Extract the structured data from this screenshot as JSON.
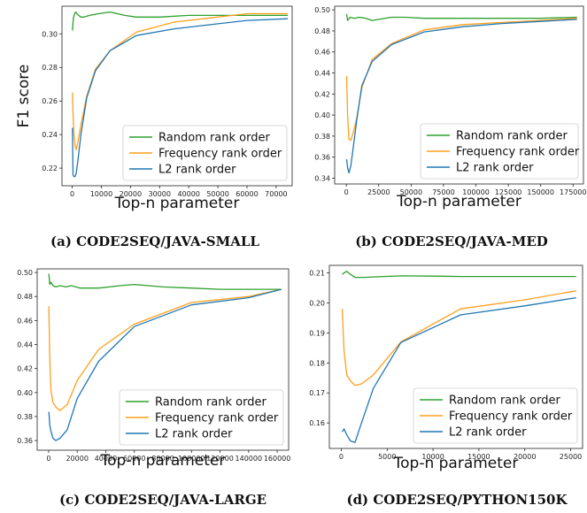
{
  "colors": {
    "random": "#2ca02c",
    "frequency": "#ff9f1c",
    "l2": "#1f77b4"
  },
  "chart_data": [
    {
      "type": "line",
      "caption": "(a) CODE2SEQ/JAVA-SMALL",
      "xlabel": "Top-n parameter",
      "ylabel": "F1 score",
      "xlim": [
        -3500,
        75500
      ],
      "ylim": [
        0.2095,
        0.3165
      ],
      "xticks": [
        0,
        10000,
        20000,
        30000,
        40000,
        50000,
        60000,
        70000
      ],
      "xtick_labels": [
        "0",
        "10000",
        "20000",
        "30000",
        "40000",
        "50000",
        "60000",
        "70000"
      ],
      "yticks": [
        0.22,
        0.24,
        0.26,
        0.28,
        0.3
      ],
      "ytick_labels": [
        "0.22",
        "0.24",
        "0.26",
        "0.28",
        "0.30"
      ],
      "legend": "lower-right",
      "series": [
        {
          "name": "Random rank order",
          "color_key": "random",
          "x": [
            100,
            400,
            800,
            1200,
            1600,
            2200,
            3000,
            4000,
            6000,
            9000,
            13000,
            18000,
            22000,
            30000,
            40000,
            50000,
            60000,
            74000
          ],
          "y": [
            0.302,
            0.309,
            0.312,
            0.313,
            0.312,
            0.311,
            0.31,
            0.31,
            0.311,
            0.312,
            0.313,
            0.311,
            0.31,
            0.31,
            0.311,
            0.311,
            0.311,
            0.311
          ]
        },
        {
          "name": "Frequency rank order",
          "color_key": "frequency",
          "x": [
            100,
            300,
            600,
            1000,
            1400,
            2000,
            3000,
            5000,
            8000,
            13000,
            22000,
            35000,
            50000,
            60000,
            74000
          ],
          "y": [
            0.265,
            0.252,
            0.24,
            0.233,
            0.231,
            0.236,
            0.246,
            0.263,
            0.279,
            0.29,
            0.301,
            0.307,
            0.31,
            0.312,
            0.312
          ]
        },
        {
          "name": "L2 rank order",
          "color_key": "l2",
          "x": [
            100,
            300,
            600,
            1000,
            1400,
            2000,
            3000,
            5000,
            8000,
            13000,
            22000,
            35000,
            50000,
            60000,
            74000
          ],
          "y": [
            0.244,
            0.216,
            0.215,
            0.215,
            0.217,
            0.225,
            0.24,
            0.262,
            0.278,
            0.29,
            0.299,
            0.303,
            0.306,
            0.308,
            0.309
          ]
        }
      ]
    },
    {
      "type": "line",
      "caption": "(b) CODE2SEQ/JAVA-MED",
      "xlabel": "Top-n parameter",
      "ylabel": "",
      "xlim": [
        -9000,
        183000
      ],
      "ylim": [
        0.3345,
        0.5035
      ],
      "xticks": [
        0,
        25000,
        50000,
        75000,
        100000,
        125000,
        150000,
        175000
      ],
      "xtick_labels": [
        "0",
        "25000",
        "50000",
        "75000",
        "100000",
        "125000",
        "150000",
        "175000"
      ],
      "yticks": [
        0.34,
        0.36,
        0.38,
        0.4,
        0.42,
        0.44,
        0.46,
        0.48,
        0.5
      ],
      "ytick_labels": [
        "0.34",
        "0.36",
        "0.38",
        "0.40",
        "0.42",
        "0.44",
        "0.46",
        "0.48",
        "0.50"
      ],
      "legend": "lower-right",
      "series": [
        {
          "name": "Random rank order",
          "color_key": "random",
          "x": [
            200,
            1000,
            3000,
            6000,
            10000,
            15000,
            20000,
            25000,
            35000,
            45000,
            60000,
            80000,
            100000,
            120000,
            150000,
            178000
          ],
          "y": [
            0.496,
            0.49,
            0.493,
            0.492,
            0.493,
            0.492,
            0.49,
            0.491,
            0.493,
            0.493,
            0.492,
            0.492,
            0.492,
            0.492,
            0.492,
            0.493
          ]
        },
        {
          "name": "Frequency rank order",
          "color_key": "frequency",
          "x": [
            200,
            1000,
            2000,
            3500,
            5000,
            8000,
            12000,
            20000,
            35000,
            60000,
            90000,
            120000,
            150000,
            178000
          ],
          "y": [
            0.437,
            0.4,
            0.377,
            0.376,
            0.382,
            0.397,
            0.426,
            0.453,
            0.468,
            0.481,
            0.486,
            0.488,
            0.49,
            0.492
          ]
        },
        {
          "name": "L2 rank order",
          "color_key": "l2",
          "x": [
            200,
            1000,
            2000,
            3500,
            5000,
            8000,
            12000,
            20000,
            35000,
            60000,
            90000,
            120000,
            150000,
            178000
          ],
          "y": [
            0.358,
            0.35,
            0.345,
            0.352,
            0.366,
            0.395,
            0.428,
            0.451,
            0.467,
            0.479,
            0.484,
            0.487,
            0.489,
            0.491
          ]
        }
      ]
    },
    {
      "type": "line",
      "caption": "(c) CODE2SEQ/JAVA-LARGE",
      "xlabel": "Top-n parameter",
      "ylabel": "",
      "xlim": [
        -8000,
        168000
      ],
      "ylim": [
        0.352,
        0.503
      ],
      "xticks": [
        0,
        20000,
        40000,
        60000,
        80000,
        100000,
        120000,
        140000,
        160000
      ],
      "xtick_labels": [
        "0",
        "20000",
        "40000",
        "60000",
        "80000",
        "100000",
        "120000",
        "140000",
        "160000"
      ],
      "yticks": [
        0.36,
        0.38,
        0.4,
        0.42,
        0.44,
        0.46,
        0.48,
        0.5
      ],
      "ytick_labels": [
        "0.36",
        "0.38",
        "0.40",
        "0.42",
        "0.44",
        "0.46",
        "0.48",
        "0.50"
      ],
      "legend": "lower-right",
      "series": [
        {
          "name": "Random rank order",
          "color_key": "random",
          "x": [
            200,
            800,
            1600,
            3000,
            5000,
            8000,
            12000,
            16000,
            22000,
            35000,
            50000,
            60000,
            80000,
            100000,
            120000,
            140000,
            163000
          ],
          "y": [
            0.499,
            0.49,
            0.492,
            0.489,
            0.488,
            0.489,
            0.488,
            0.489,
            0.487,
            0.487,
            0.489,
            0.49,
            0.488,
            0.487,
            0.486,
            0.486,
            0.486
          ]
        },
        {
          "name": "Frequency rank order",
          "color_key": "frequency",
          "x": [
            200,
            800,
            1600,
            3000,
            5000,
            8000,
            13000,
            20000,
            35000,
            60000,
            100000,
            140000,
            163000
          ],
          "y": [
            0.472,
            0.428,
            0.402,
            0.392,
            0.388,
            0.385,
            0.39,
            0.41,
            0.436,
            0.457,
            0.475,
            0.48,
            0.486
          ]
        },
        {
          "name": "L2 rank order",
          "color_key": "l2",
          "x": [
            200,
            800,
            1600,
            3000,
            5000,
            8000,
            13000,
            20000,
            35000,
            60000,
            100000,
            140000,
            163000
          ],
          "y": [
            0.384,
            0.373,
            0.368,
            0.362,
            0.36,
            0.362,
            0.369,
            0.395,
            0.426,
            0.455,
            0.473,
            0.479,
            0.486
          ]
        }
      ]
    },
    {
      "type": "line",
      "caption": "(d) CODE2SEQ/PYTHON150K",
      "xlabel": "Top-n parameter",
      "ylabel": "",
      "xlim": [
        -1300,
        26300
      ],
      "ylim": [
        0.1515,
        0.2125
      ],
      "xticks": [
        0,
        5000,
        10000,
        15000,
        20000,
        25000
      ],
      "xtick_labels": [
        "0",
        "5000",
        "10000",
        "15000",
        "20000",
        "25000"
      ],
      "yticks": [
        0.16,
        0.17,
        0.18,
        0.19,
        0.2,
        0.21
      ],
      "ytick_labels": [
        "0.16",
        "0.17",
        "0.18",
        "0.19",
        "0.20",
        "0.21"
      ],
      "legend": "lower-right",
      "series": [
        {
          "name": "Random rank order",
          "color_key": "random",
          "x": [
            100,
            300,
            600,
            1000,
            1500,
            2500,
            4000,
            6500,
            10000,
            13000,
            16000,
            20000,
            25600
          ],
          "y": [
            0.2095,
            0.21,
            0.2105,
            0.2095,
            0.2085,
            0.2085,
            0.2087,
            0.209,
            0.2089,
            0.2088,
            0.2088,
            0.2088,
            0.2088
          ]
        },
        {
          "name": "Frequency rank order",
          "color_key": "frequency",
          "x": [
            100,
            300,
            600,
            1000,
            1500,
            2200,
            3500,
            6500,
            13000,
            20000,
            25600
          ],
          "y": [
            0.198,
            0.184,
            0.176,
            0.174,
            0.1725,
            0.173,
            0.176,
            0.187,
            0.198,
            0.201,
            0.204
          ]
        },
        {
          "name": "L2 rank order",
          "color_key": "l2",
          "x": [
            100,
            300,
            600,
            1000,
            1500,
            2200,
            3500,
            6500,
            13000,
            20000,
            25600
          ],
          "y": [
            0.157,
            0.158,
            0.156,
            0.154,
            0.1535,
            0.16,
            0.1715,
            0.1868,
            0.196,
            0.199,
            0.2017
          ]
        }
      ]
    }
  ]
}
